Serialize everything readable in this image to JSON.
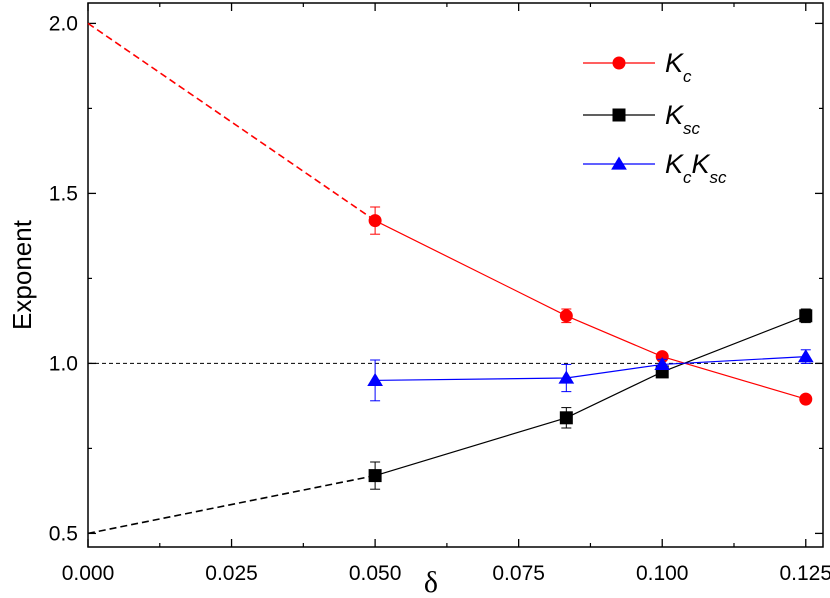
{
  "chart_data": {
    "type": "line",
    "xlabel": "δ",
    "ylabel": "Exponent",
    "xlim": [
      0.0,
      0.128
    ],
    "ylim": [
      0.46,
      2.06
    ],
    "xticks": [
      0.0,
      0.025,
      0.05,
      0.075,
      0.1,
      0.125
    ],
    "xtick_labels": [
      "0.000",
      "0.025",
      "0.050",
      "0.075",
      "0.100",
      "0.125"
    ],
    "yticks": [
      0.5,
      1.0,
      1.5,
      2.0
    ],
    "ytick_labels": [
      "0.5",
      "1.0",
      "1.5",
      "2.0"
    ],
    "reference_line": {
      "y": 1.0,
      "style": "dashed",
      "color": "#000000"
    },
    "legend_position": "top-right",
    "series": [
      {
        "name": "K_c",
        "legend_main": [
          "K"
        ],
        "legend_sub": [
          "c"
        ],
        "color": "#ff0000",
        "marker": "circle",
        "x": [
          0.05,
          0.0833,
          0.1,
          0.125
        ],
        "y": [
          1.42,
          1.14,
          1.02,
          0.895
        ],
        "err": [
          0.04,
          0.02,
          0.01,
          0.01
        ],
        "extrapolation": {
          "x": [
            0.0,
            0.05
          ],
          "y": [
            2.0,
            1.42
          ]
        }
      },
      {
        "name": "K_sc",
        "legend_main": [
          "K"
        ],
        "legend_sub": [
          "sc"
        ],
        "color": "#000000",
        "marker": "square",
        "x": [
          0.05,
          0.0833,
          0.1,
          0.125
        ],
        "y": [
          0.67,
          0.84,
          0.975,
          1.14
        ],
        "err": [
          0.04,
          0.03,
          0.015,
          0.02
        ],
        "extrapolation": {
          "x": [
            0.0,
            0.05
          ],
          "y": [
            0.5,
            0.67
          ]
        }
      },
      {
        "name": "K_c K_sc",
        "legend_main": [
          "K",
          "K"
        ],
        "legend_sub": [
          "c",
          "sc"
        ],
        "color": "#0000ff",
        "marker": "triangle",
        "x": [
          0.05,
          0.0833,
          0.1,
          0.125
        ],
        "y": [
          0.95,
          0.957,
          0.997,
          1.02
        ],
        "err": [
          0.06,
          0.04,
          0.015,
          0.02
        ]
      }
    ]
  }
}
